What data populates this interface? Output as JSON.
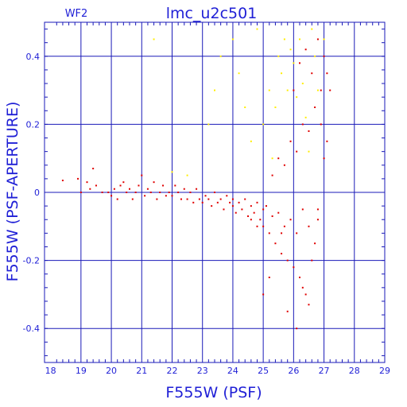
{
  "chart_data": {
    "type": "scatter",
    "title": "lmc_u2c501",
    "chip_label": "WF2",
    "xlabel": "F555W (PSF)",
    "ylabel": "F555W (PSF-APERTURE)",
    "xlim": [
      17.8,
      29
    ],
    "ylim": [
      -0.5,
      0.5
    ],
    "x_ticks": [
      18,
      19,
      20,
      21,
      22,
      23,
      24,
      25,
      26,
      27,
      28,
      29
    ],
    "y_ticks": [
      -0.4,
      -0.2,
      0,
      0.2,
      0.4
    ],
    "y_tick_labels": [
      "-0.4",
      "-0.2",
      "0",
      "0.2",
      "0.4"
    ],
    "grid": true,
    "colors": {
      "axis": "#1f1fd6",
      "grid": "#1a1ab8",
      "series_red": "#e00000",
      "series_yellow": "#ffee00"
    },
    "series": [
      {
        "color": "#e00000",
        "values": [
          [
            18.4,
            0.035
          ],
          [
            18.9,
            0.04
          ],
          [
            19.0,
            0.0
          ],
          [
            19.2,
            0.03
          ],
          [
            19.3,
            0.01
          ],
          [
            19.4,
            0.07
          ],
          [
            19.5,
            0.02
          ],
          [
            19.7,
            0.0
          ],
          [
            19.9,
            0.0
          ],
          [
            20.0,
            -0.01
          ],
          [
            20.1,
            0.01
          ],
          [
            20.2,
            -0.02
          ],
          [
            20.3,
            0.02
          ],
          [
            20.4,
            0.03
          ],
          [
            20.5,
            0.0
          ],
          [
            20.6,
            0.01
          ],
          [
            20.7,
            -0.02
          ],
          [
            20.8,
            0.0
          ],
          [
            20.9,
            0.02
          ],
          [
            21.0,
            0.05
          ],
          [
            21.1,
            -0.01
          ],
          [
            21.2,
            0.01
          ],
          [
            21.3,
            0.0
          ],
          [
            21.4,
            0.03
          ],
          [
            21.5,
            -0.02
          ],
          [
            21.6,
            0.0
          ],
          [
            21.7,
            0.02
          ],
          [
            21.8,
            -0.01
          ],
          [
            21.9,
            0.0
          ],
          [
            22.0,
            -0.01
          ],
          [
            22.1,
            0.02
          ],
          [
            22.2,
            0.0
          ],
          [
            22.3,
            -0.02
          ],
          [
            22.4,
            0.01
          ],
          [
            22.5,
            -0.02
          ],
          [
            22.6,
            0.0
          ],
          [
            22.7,
            -0.03
          ],
          [
            22.8,
            0.01
          ],
          [
            22.9,
            -0.02
          ],
          [
            23.0,
            -0.03
          ],
          [
            23.1,
            -0.01
          ],
          [
            23.2,
            -0.02
          ],
          [
            23.3,
            -0.04
          ],
          [
            23.4,
            0.0
          ],
          [
            23.5,
            -0.03
          ],
          [
            23.6,
            -0.02
          ],
          [
            23.7,
            -0.05
          ],
          [
            23.8,
            -0.01
          ],
          [
            23.9,
            -0.03
          ],
          [
            24.0,
            -0.04
          ],
          [
            24.0,
            -0.02
          ],
          [
            24.1,
            -0.06
          ],
          [
            24.2,
            -0.03
          ],
          [
            24.3,
            -0.05
          ],
          [
            24.4,
            -0.02
          ],
          [
            24.5,
            -0.07
          ],
          [
            24.6,
            -0.04
          ],
          [
            24.7,
            -0.06
          ],
          [
            24.8,
            -0.03
          ],
          [
            24.9,
            -0.08
          ],
          [
            25.0,
            -0.05
          ],
          [
            25.0,
            -0.1
          ],
          [
            25.1,
            -0.04
          ],
          [
            25.2,
            -0.12
          ],
          [
            25.3,
            -0.07
          ],
          [
            25.4,
            -0.15
          ],
          [
            25.5,
            -0.06
          ],
          [
            25.6,
            -0.18
          ],
          [
            25.7,
            -0.1
          ],
          [
            25.8,
            -0.2
          ],
          [
            25.9,
            -0.08
          ],
          [
            26.0,
            -0.22
          ],
          [
            26.1,
            -0.12
          ],
          [
            26.2,
            -0.25
          ],
          [
            26.3,
            -0.05
          ],
          [
            26.4,
            -0.3
          ],
          [
            26.5,
            -0.1
          ],
          [
            26.6,
            -0.2
          ],
          [
            26.7,
            -0.15
          ],
          [
            26.8,
            -0.08
          ],
          [
            25.3,
            0.05
          ],
          [
            25.5,
            0.1
          ],
          [
            25.7,
            0.08
          ],
          [
            25.9,
            0.15
          ],
          [
            26.1,
            0.12
          ],
          [
            26.3,
            0.2
          ],
          [
            26.5,
            0.18
          ],
          [
            26.7,
            0.25
          ],
          [
            26.9,
            0.3
          ],
          [
            27.0,
            0.1
          ],
          [
            26.0,
            0.3
          ],
          [
            26.2,
            0.38
          ],
          [
            26.4,
            0.42
          ],
          [
            26.6,
            0.35
          ],
          [
            26.8,
            0.45
          ],
          [
            27.0,
            0.4
          ],
          [
            27.1,
            0.35
          ],
          [
            27.2,
            0.3
          ],
          [
            26.9,
            0.2
          ],
          [
            27.1,
            0.15
          ],
          [
            25.0,
            -0.3
          ],
          [
            25.2,
            -0.25
          ],
          [
            25.8,
            -0.35
          ],
          [
            26.3,
            -0.28
          ],
          [
            26.5,
            -0.33
          ],
          [
            26.1,
            -0.4
          ],
          [
            25.6,
            -0.12
          ],
          [
            24.8,
            -0.1
          ],
          [
            24.6,
            -0.08
          ],
          [
            26.8,
            -0.05
          ]
        ]
      },
      {
        "color": "#ffee00",
        "values": [
          [
            21.4,
            0.45
          ],
          [
            22.0,
            0.06
          ],
          [
            22.5,
            0.05
          ],
          [
            23.2,
            0.2
          ],
          [
            23.4,
            0.3
          ],
          [
            23.6,
            0.4
          ],
          [
            24.0,
            0.45
          ],
          [
            24.2,
            0.35
          ],
          [
            24.4,
            0.25
          ],
          [
            24.8,
            0.48
          ],
          [
            25.0,
            0.2
          ],
          [
            25.2,
            0.3
          ],
          [
            25.4,
            0.25
          ],
          [
            25.5,
            0.4
          ],
          [
            25.6,
            0.35
          ],
          [
            25.7,
            0.45
          ],
          [
            25.8,
            0.3
          ],
          [
            25.9,
            0.42
          ],
          [
            26.0,
            0.38
          ],
          [
            26.1,
            0.28
          ],
          [
            26.2,
            0.45
          ],
          [
            26.3,
            0.32
          ],
          [
            26.4,
            0.22
          ],
          [
            26.6,
            0.48
          ],
          [
            26.7,
            0.4
          ],
          [
            26.8,
            0.3
          ],
          [
            27.0,
            0.45
          ],
          [
            24.6,
            0.15
          ],
          [
            25.3,
            0.1
          ],
          [
            26.5,
            0.12
          ]
        ]
      }
    ]
  }
}
